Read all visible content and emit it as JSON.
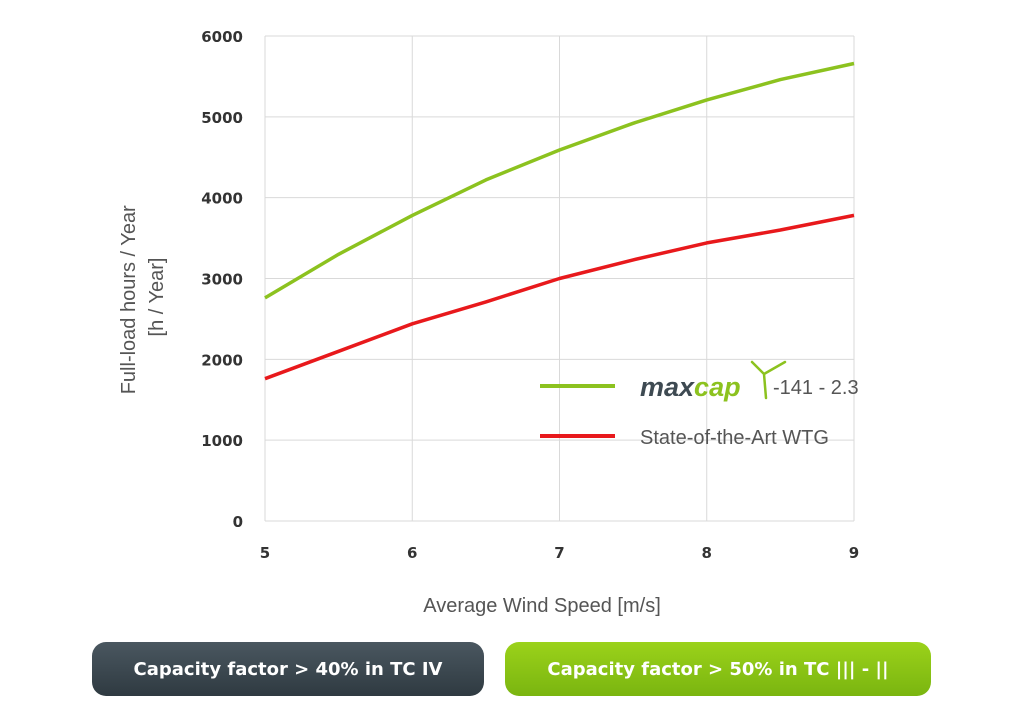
{
  "chart_data": {
    "type": "line",
    "xlabel": "Average Wind Speed [m/s]",
    "ylabel_lines": [
      "Full-load hours / Year",
      "[h / Year]"
    ],
    "x_ticks": [
      5,
      6,
      7,
      8,
      9
    ],
    "y_ticks": [
      0,
      1000,
      2000,
      3000,
      4000,
      5000,
      6000
    ],
    "xlim": [
      5,
      9
    ],
    "ylim": [
      0,
      6000
    ],
    "grid": true,
    "legend_position": "lower-right",
    "series": [
      {
        "name": "-141 - 2.3",
        "logo": "maxcap",
        "color": "#8cc21f",
        "x": [
          5,
          5.5,
          6,
          6.5,
          7,
          7.5,
          8,
          8.5,
          9
        ],
        "y": [
          2760,
          3300,
          3780,
          4220,
          4590,
          4920,
          5210,
          5460,
          5660
        ]
      },
      {
        "name": "State-of-the-Art WTG",
        "color": "#e8191c",
        "x": [
          5,
          5.5,
          6,
          6.5,
          7,
          7.5,
          8,
          8.5,
          9
        ],
        "y": [
          1760,
          2100,
          2440,
          2710,
          3000,
          3230,
          3440,
          3600,
          3780
        ]
      }
    ]
  },
  "logo": {
    "text_dark": "max",
    "text_green": "cap",
    "color_dark": "#3e4a52",
    "color_green": "#8cc21f"
  },
  "badges": {
    "left": "Capacity factor > 40% in TC IV",
    "right": "Capacity factor > 50% in TC ||| - ||"
  }
}
